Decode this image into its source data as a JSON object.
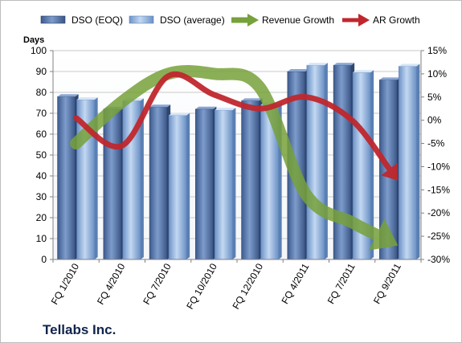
{
  "chart_data": {
    "type": "bar",
    "company": "Tellabs Inc.",
    "ylabel": "Days",
    "categories": [
      "FQ 1/2010",
      "FQ 4/2010",
      "FQ 7/2010",
      "FQ 10/2010",
      "FQ 12/2010",
      "FQ 4/2011",
      "FQ 7/2011",
      "FQ 9/2011"
    ],
    "ylim": [
      0,
      100
    ],
    "y_ticks": [
      "0",
      "10",
      "20",
      "30",
      "40",
      "50",
      "60",
      "70",
      "80",
      "90",
      "100"
    ],
    "y2lim": [
      -30,
      15
    ],
    "y2_ticks": [
      "-30%",
      "-25%",
      "-20%",
      "-15%",
      "-10%",
      "-5%",
      "0%",
      "5%",
      "10%",
      "15%"
    ],
    "grid": true,
    "legend_position": "top",
    "series": [
      {
        "name": "DSO (EOQ)",
        "type": "bar",
        "color": "#4f6fa3",
        "values": [
          78,
          72,
          73,
          72,
          76,
          90,
          93,
          86
        ]
      },
      {
        "name": "DSO (average)",
        "type": "bar",
        "color": "#8eb1df",
        "values": [
          76.5,
          76,
          69,
          71.5,
          74,
          93,
          89.5,
          92.5
        ]
      },
      {
        "name": "Revenue Growth",
        "type": "line",
        "axis": "secondary",
        "color": "#77a13a",
        "values": [
          -5,
          4,
          10,
          10,
          7,
          -16,
          -22,
          -27
        ]
      },
      {
        "name": "AR Growth",
        "type": "line",
        "axis": "secondary",
        "color": "#c0272d",
        "values": [
          0.5,
          -5.5,
          9.5,
          5.5,
          2.5,
          5,
          0,
          -13
        ]
      }
    ]
  }
}
